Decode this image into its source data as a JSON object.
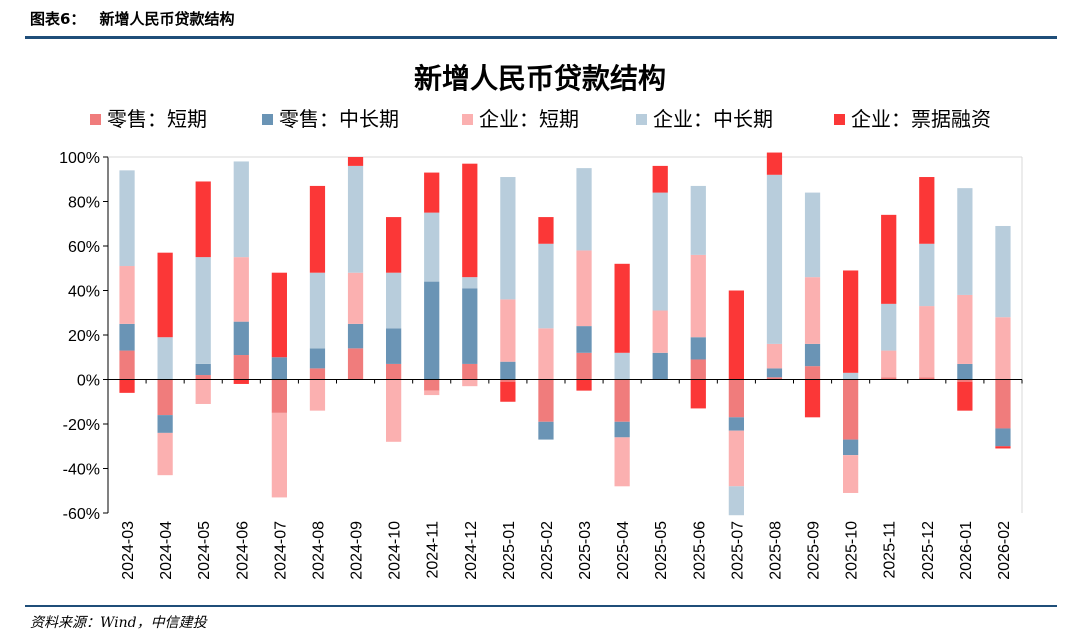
{
  "header": {
    "fig_label": "图表6：",
    "fig_title": "新增人民币贷款结构"
  },
  "source": "资料来源：Wind，中信建投",
  "chart_data": {
    "type": "bar",
    "stacked": true,
    "title": "新增人民币贷款结构",
    "xlabel": "",
    "ylabel": "",
    "ylim": [
      -60,
      100
    ],
    "yticks": [
      -60,
      -40,
      -20,
      0,
      20,
      40,
      60,
      80,
      100
    ],
    "ytick_suffix": "%",
    "legend_position": "top",
    "categories": [
      "2024-03",
      "2024-04",
      "2024-05",
      "2024-06",
      "2024-07",
      "2024-08",
      "2024-09",
      "2024-10",
      "2024-11",
      "2024-12",
      "2025-01",
      "2025-02",
      "2025-03",
      "2025-04",
      "2025-05",
      "2025-06",
      "2025-07",
      "2025-08",
      "2025-09",
      "2025-10",
      "2025-11",
      "2025-12",
      "2026-01",
      "2026-02"
    ],
    "series": [
      {
        "name": "零售：短期",
        "color": "#f07c7c",
        "values": [
          13,
          -16,
          2,
          11,
          -15,
          5,
          14,
          7,
          -5,
          7,
          -1,
          -19,
          12,
          -19,
          0,
          9,
          -17,
          1,
          6,
          -27,
          1,
          1,
          -1,
          -22
        ]
      },
      {
        "name": "零售：中长期",
        "color": "#6a94b5",
        "values": [
          12,
          -8,
          5,
          15,
          10,
          9,
          11,
          16,
          44,
          34,
          8,
          -8,
          12,
          -7,
          12,
          10,
          -6,
          4,
          10,
          -7,
          0,
          0,
          7,
          -8
        ]
      },
      {
        "name": "企业：短期",
        "color": "#fbb0b0",
        "values": [
          26,
          -19,
          -11,
          29,
          -38,
          -14,
          23,
          -28,
          -2,
          -3,
          28,
          23,
          34,
          -22,
          19,
          37,
          -25,
          11,
          30,
          -17,
          12,
          32,
          31,
          28
        ]
      },
      {
        "name": "企业：中长期",
        "color": "#b8cddc",
        "values": [
          43,
          19,
          48,
          43,
          0,
          34,
          48,
          25,
          31,
          5,
          55,
          38,
          37,
          12,
          53,
          31,
          -13,
          76,
          38,
          3,
          21,
          28,
          48,
          41
        ]
      },
      {
        "name": "企业：票据融资",
        "color": "#fb3737",
        "values": [
          -6,
          38,
          34,
          -2,
          38,
          39,
          4,
          25,
          18,
          51,
          -9,
          12,
          -5,
          40,
          12,
          -13,
          40,
          10,
          -17,
          46,
          40,
          30,
          -13,
          -1
        ]
      }
    ]
  }
}
